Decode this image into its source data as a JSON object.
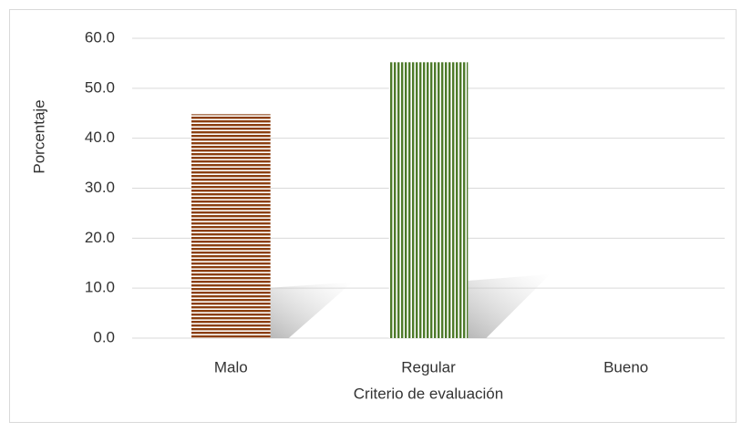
{
  "chart_data": {
    "type": "bar",
    "categories": [
      "Malo",
      "Regular",
      "Bueno"
    ],
    "values": [
      44.8,
      55.2,
      0
    ],
    "colors": [
      "#8b3e0f",
      "#4e7a2a",
      "#4e7a2a"
    ],
    "patterns": [
      "horizontal-stripes",
      "vertical-stripes",
      "vertical-stripes"
    ],
    "ylim": [
      0,
      60
    ],
    "yticks": [
      {
        "value": 0,
        "label": "0.0"
      },
      {
        "value": 10,
        "label": "10.0"
      },
      {
        "value": 20,
        "label": "20.0"
      },
      {
        "value": 30,
        "label": "30.0"
      },
      {
        "value": 40,
        "label": "40.0"
      },
      {
        "value": 50,
        "label": "50.0"
      },
      {
        "value": 60,
        "label": "60.0"
      }
    ],
    "ylabel": "Porcentaje",
    "xlabel": "Criterio de evaluación",
    "grid": true
  }
}
